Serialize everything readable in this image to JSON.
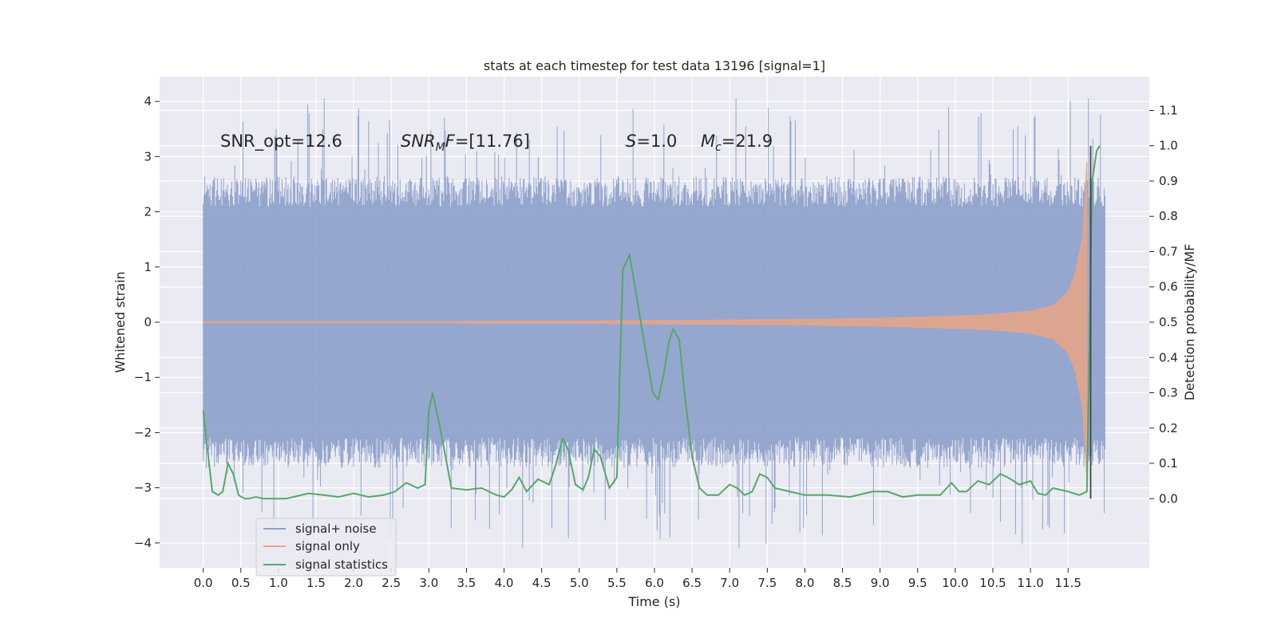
{
  "chart_data": {
    "type": "line",
    "title": "stats at each timestep for test data 13196 [signal=1]",
    "xlabel": "Time (s)",
    "ylabel_left": "Whitened strain",
    "ylabel_right": "Detection probability/MF",
    "xlim": [
      -0.58,
      12.58
    ],
    "ylim_left": [
      -4.45,
      4.45
    ],
    "ylim_right": [
      -0.196,
      1.196
    ],
    "grid": true,
    "legend_position": "lower-left",
    "x_ticks": [
      "0.0",
      "0.5",
      "1.0",
      "1.5",
      "2.0",
      "2.5",
      "3.0",
      "3.5",
      "4.0",
      "4.5",
      "5.0",
      "5.5",
      "6.0",
      "6.5",
      "7.0",
      "7.5",
      "8.0",
      "8.5",
      "9.0",
      "9.5",
      "10.0",
      "10.5",
      "11.0",
      "11.5"
    ],
    "y_ticks_left": [
      "4",
      "3",
      "2",
      "1",
      "0",
      "−1",
      "−2",
      "−3",
      "−4"
    ],
    "y_ticks_right": [
      "1.1",
      "1.0",
      "0.9",
      "0.8",
      "0.7",
      "0.6",
      "0.5",
      "0.4",
      "0.3",
      "0.2",
      "0.1",
      "0.0"
    ],
    "annotations": {
      "snr_opt": "SNR_opt=12.6",
      "snr_mf_italic": "SNR",
      "snr_mf_sub": "M",
      "snr_mf_italic2": "F",
      "snr_mf_value": "=[11.76]",
      "s_symbol": "S",
      "s_value": "=1.0",
      "mc_symbol": "M",
      "mc_sub": "c",
      "mc_value": "=21.9"
    },
    "vertical_line_x": 11.8,
    "series": [
      {
        "name": "signal+ noise",
        "color": "#8da0cb",
        "envelope": {
          "t": [
            0,
            11.99
          ],
          "typical_amplitude": 2.2,
          "max": 4.05,
          "min": -4.1
        }
      },
      {
        "name": "signal only",
        "color": "#e8a585",
        "envelope": {
          "t": [
            0,
            1,
            2,
            3,
            4,
            5,
            6,
            7,
            8,
            9,
            10,
            10.5,
            11,
            11.3,
            11.5,
            11.6,
            11.7,
            11.75
          ],
          "amplitude": [
            0.01,
            0.01,
            0.01,
            0.01,
            0.02,
            0.02,
            0.03,
            0.04,
            0.05,
            0.07,
            0.11,
            0.14,
            0.2,
            0.3,
            0.55,
            0.9,
            1.6,
            2.9
          ]
        }
      },
      {
        "name": "signal statistics",
        "color": "#55a868",
        "axis": "right",
        "x": [
          0.0,
          0.05,
          0.12,
          0.2,
          0.26,
          0.33,
          0.4,
          0.47,
          0.55,
          0.6,
          0.7,
          0.8,
          0.9,
          1.0,
          1.1,
          1.2,
          1.4,
          1.6,
          1.8,
          2.0,
          2.2,
          2.4,
          2.55,
          2.7,
          2.85,
          2.95,
          3.0,
          3.05,
          3.15,
          3.3,
          3.5,
          3.7,
          3.9,
          4.0,
          4.1,
          4.2,
          4.3,
          4.45,
          4.6,
          4.68,
          4.78,
          4.85,
          4.95,
          5.05,
          5.12,
          5.2,
          5.28,
          5.4,
          5.5,
          5.58,
          5.67,
          5.78,
          5.88,
          5.98,
          6.05,
          6.12,
          6.2,
          6.25,
          6.33,
          6.4,
          6.5,
          6.6,
          6.7,
          6.85,
          7.0,
          7.1,
          7.2,
          7.3,
          7.4,
          7.5,
          7.6,
          7.8,
          8.0,
          8.3,
          8.6,
          8.9,
          9.1,
          9.3,
          9.5,
          9.8,
          9.95,
          10.05,
          10.15,
          10.3,
          10.45,
          10.6,
          10.7,
          10.85,
          11.0,
          11.1,
          11.2,
          11.3,
          11.5,
          11.65,
          11.75,
          11.82,
          11.88,
          11.92
        ],
        "y": [
          0.25,
          0.15,
          0.02,
          0.01,
          0.02,
          0.1,
          0.07,
          0.01,
          0.0,
          0.0,
          0.005,
          0.0,
          0.0,
          0.0,
          0.0,
          0.005,
          0.015,
          0.01,
          0.005,
          0.015,
          0.005,
          0.01,
          0.02,
          0.045,
          0.03,
          0.04,
          0.25,
          0.3,
          0.2,
          0.03,
          0.025,
          0.03,
          0.01,
          0.005,
          0.025,
          0.06,
          0.02,
          0.055,
          0.04,
          0.09,
          0.17,
          0.14,
          0.04,
          0.025,
          0.06,
          0.14,
          0.12,
          0.03,
          0.06,
          0.65,
          0.69,
          0.55,
          0.42,
          0.3,
          0.28,
          0.35,
          0.45,
          0.48,
          0.45,
          0.3,
          0.12,
          0.03,
          0.01,
          0.01,
          0.04,
          0.03,
          0.01,
          0.02,
          0.07,
          0.06,
          0.03,
          0.02,
          0.01,
          0.01,
          0.005,
          0.02,
          0.02,
          0.005,
          0.01,
          0.01,
          0.045,
          0.02,
          0.02,
          0.05,
          0.04,
          0.07,
          0.06,
          0.04,
          0.05,
          0.015,
          0.01,
          0.03,
          0.02,
          0.01,
          0.02,
          0.9,
          0.985,
          1.0
        ]
      }
    ]
  }
}
